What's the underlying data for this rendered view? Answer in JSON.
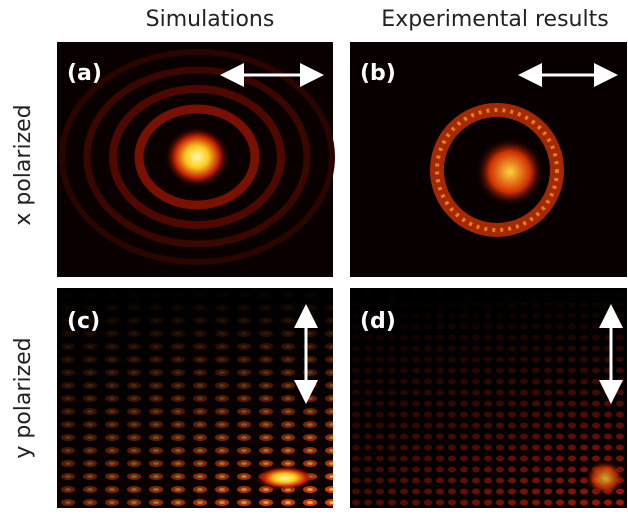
{
  "columns": [
    "Simulations",
    "Experimental results"
  ],
  "rows": [
    "x polarized",
    "y polarized"
  ],
  "panels": [
    {
      "label": "(a)"
    },
    {
      "label": "(b)"
    },
    {
      "label": "(c)"
    },
    {
      "label": "(d)"
    }
  ]
}
